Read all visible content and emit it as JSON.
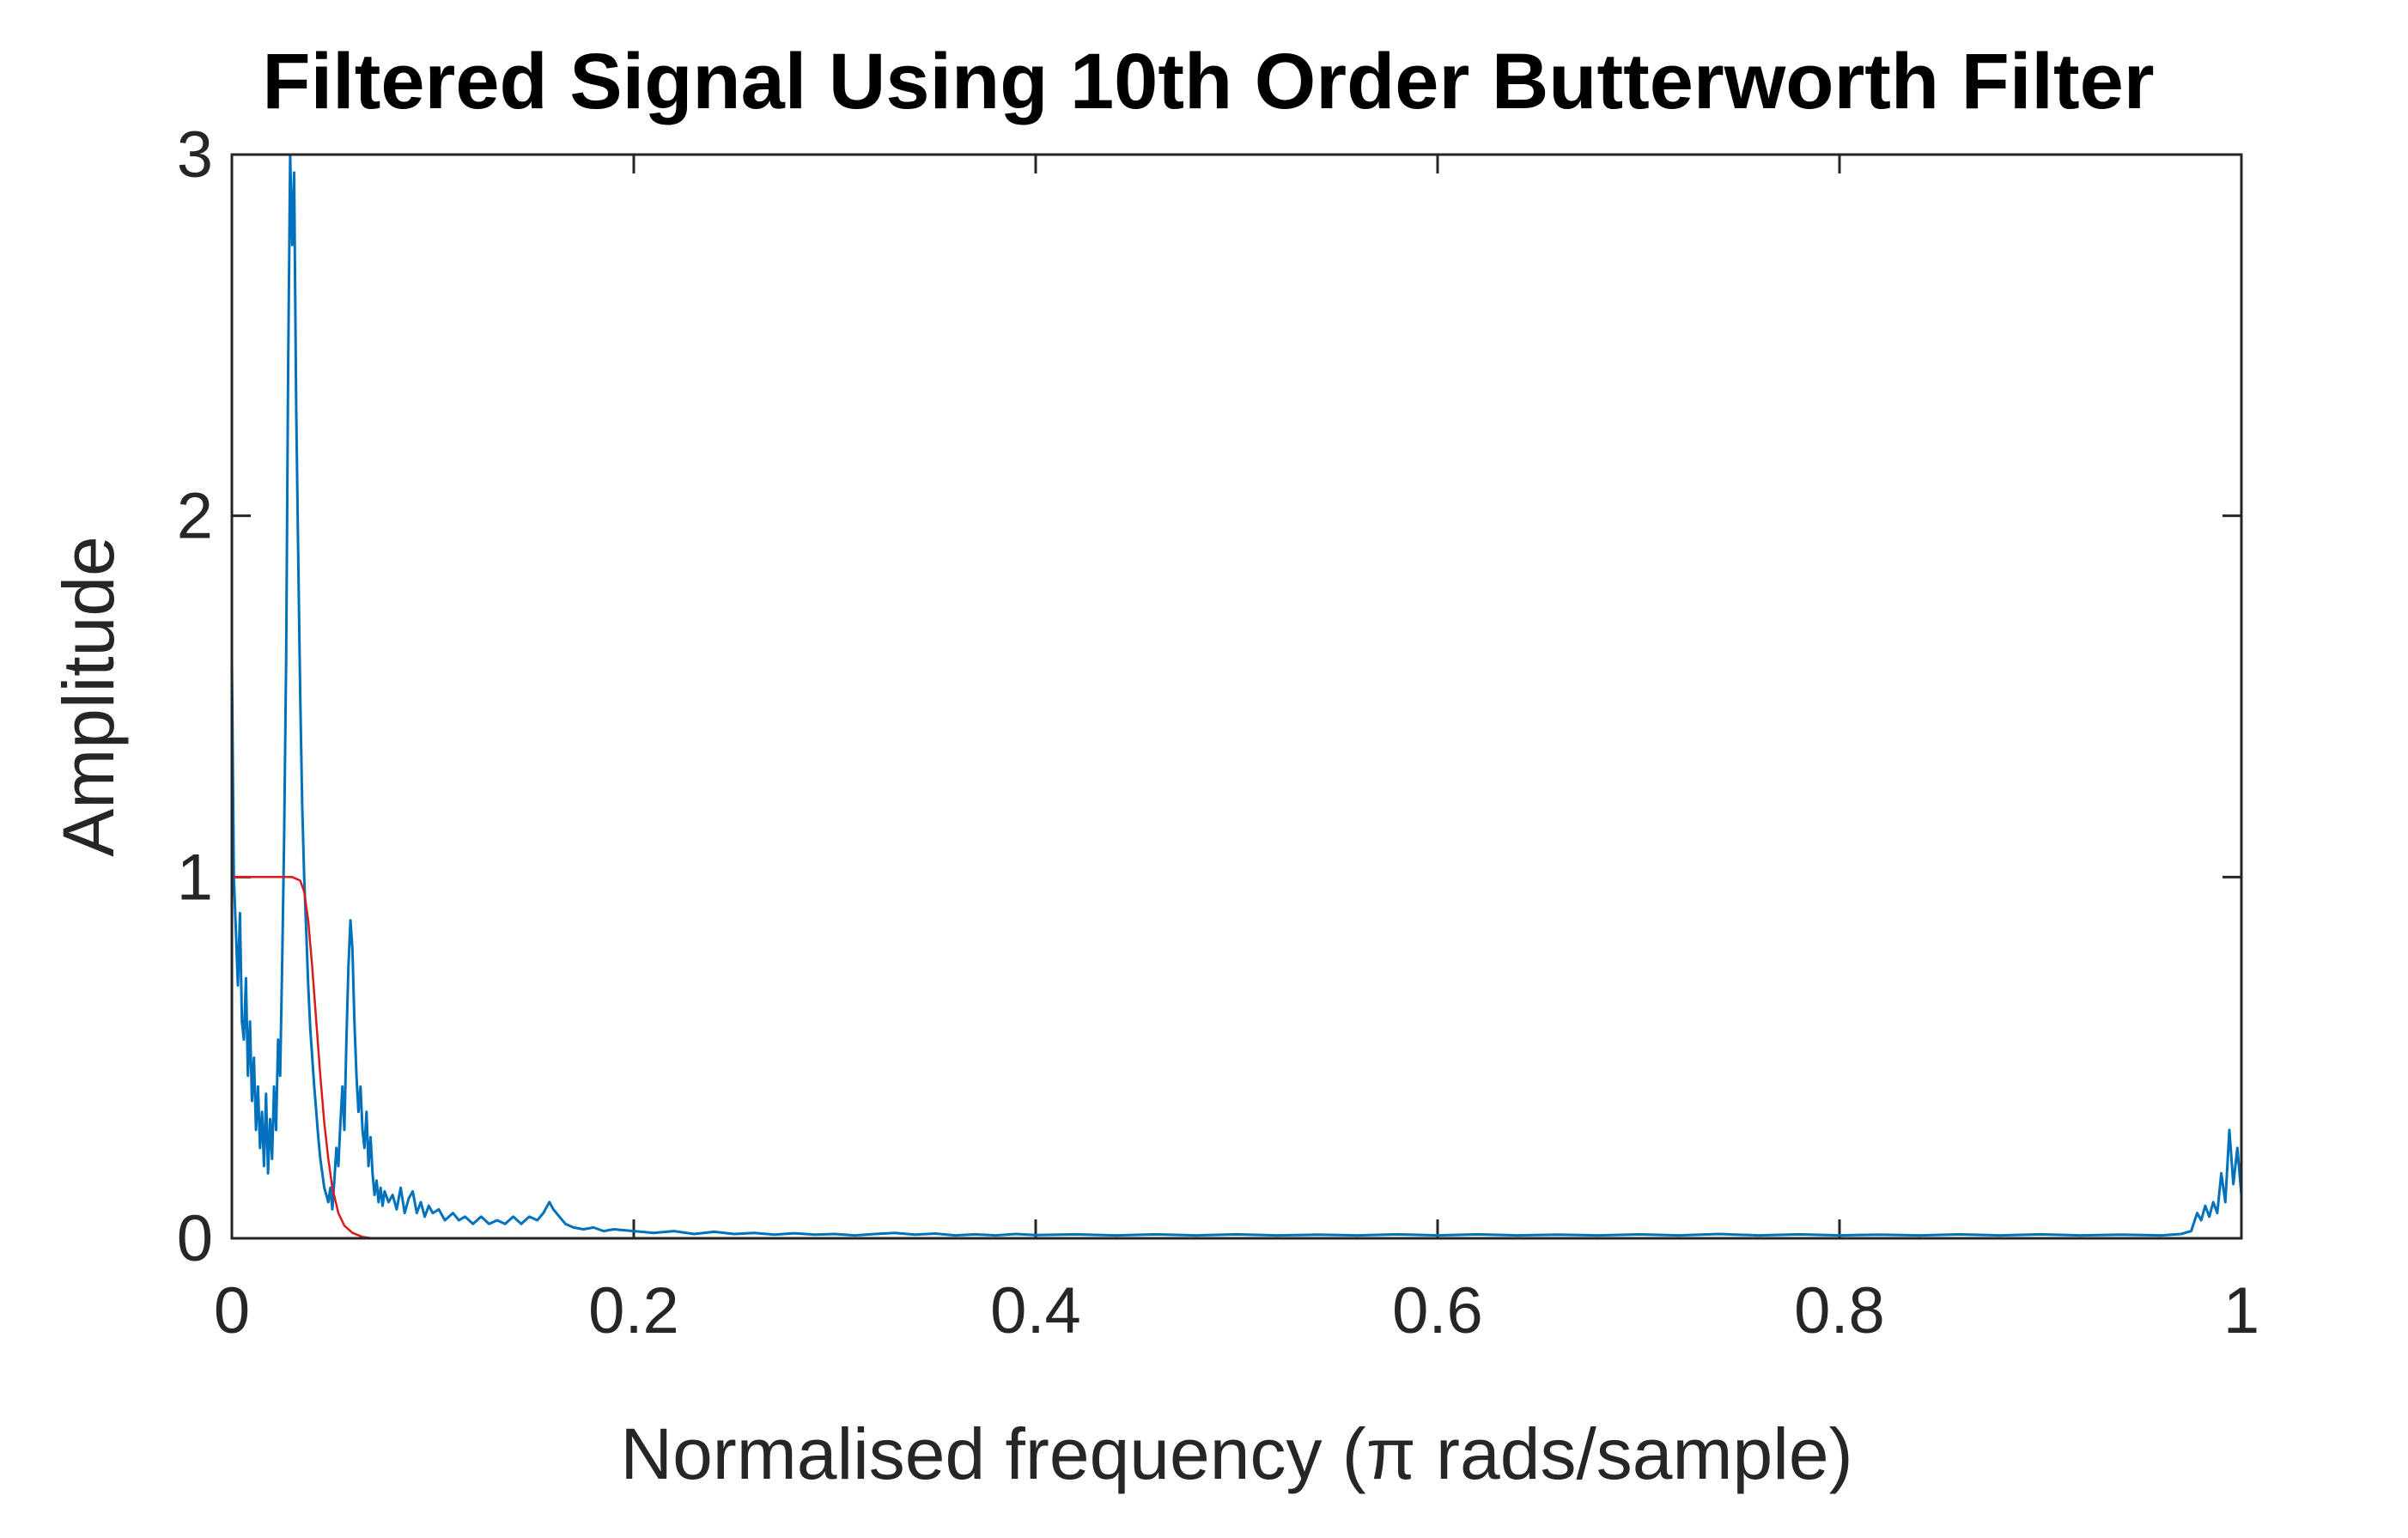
{
  "chart_data": {
    "type": "line",
    "title": "Filtered Signal Using 10th Order Butterworth Filter",
    "xlabel": "Normalised frequency (π rads/sample)",
    "ylabel": "Amplitude",
    "xlim": [
      0,
      1
    ],
    "ylim": [
      0,
      3
    ],
    "x_ticks": [
      0,
      0.2,
      0.4,
      0.6,
      0.8,
      1
    ],
    "x_tick_labels": [
      "0",
      "0.2",
      "0.4",
      "0.6",
      "0.8",
      "1"
    ],
    "y_ticks": [
      0,
      1,
      2,
      3
    ],
    "y_tick_labels": [
      "0",
      "1",
      "2",
      "3"
    ],
    "grid": false,
    "box": true,
    "series": [
      {
        "color": "#0072BD",
        "points": [
          [
            0,
            1.6
          ],
          [
            0.001,
            1.0
          ],
          [
            0.002,
            0.85
          ],
          [
            0.003,
            0.7
          ],
          [
            0.004,
            0.9
          ],
          [
            0.005,
            0.6
          ],
          [
            0.006,
            0.55
          ],
          [
            0.007,
            0.72
          ],
          [
            0.008,
            0.45
          ],
          [
            0.009,
            0.6
          ],
          [
            0.01,
            0.38
          ],
          [
            0.011,
            0.5
          ],
          [
            0.012,
            0.3
          ],
          [
            0.013,
            0.42
          ],
          [
            0.014,
            0.25
          ],
          [
            0.015,
            0.35
          ],
          [
            0.016,
            0.2
          ],
          [
            0.017,
            0.4
          ],
          [
            0.018,
            0.18
          ],
          [
            0.019,
            0.33
          ],
          [
            0.02,
            0.22
          ],
          [
            0.021,
            0.42
          ],
          [
            0.022,
            0.3
          ],
          [
            0.023,
            0.55
          ],
          [
            0.024,
            0.45
          ],
          [
            0.025,
            0.75
          ],
          [
            0.026,
            1.1
          ],
          [
            0.027,
            1.6
          ],
          [
            0.028,
            2.4
          ],
          [
            0.029,
            3.0
          ],
          [
            0.03,
            2.75
          ],
          [
            0.031,
            2.95
          ],
          [
            0.032,
            2.3
          ],
          [
            0.033,
            1.9
          ],
          [
            0.034,
            1.5
          ],
          [
            0.035,
            1.2
          ],
          [
            0.036,
            1.0
          ],
          [
            0.037,
            0.85
          ],
          [
            0.038,
            0.7
          ],
          [
            0.039,
            0.58
          ],
          [
            0.04,
            0.5
          ],
          [
            0.041,
            0.42
          ],
          [
            0.042,
            0.35
          ],
          [
            0.043,
            0.28
          ],
          [
            0.044,
            0.22
          ],
          [
            0.045,
            0.18
          ],
          [
            0.046,
            0.14
          ],
          [
            0.047,
            0.12
          ],
          [
            0.048,
            0.1
          ],
          [
            0.049,
            0.14
          ],
          [
            0.05,
            0.08
          ],
          [
            0.051,
            0.16
          ],
          [
            0.052,
            0.25
          ],
          [
            0.053,
            0.2
          ],
          [
            0.054,
            0.32
          ],
          [
            0.055,
            0.42
          ],
          [
            0.056,
            0.3
          ],
          [
            0.057,
            0.55
          ],
          [
            0.058,
            0.75
          ],
          [
            0.059,
            0.88
          ],
          [
            0.06,
            0.8
          ],
          [
            0.061,
            0.6
          ],
          [
            0.062,
            0.45
          ],
          [
            0.063,
            0.35
          ],
          [
            0.064,
            0.42
          ],
          [
            0.065,
            0.3
          ],
          [
            0.066,
            0.25
          ],
          [
            0.067,
            0.35
          ],
          [
            0.068,
            0.2
          ],
          [
            0.069,
            0.28
          ],
          [
            0.07,
            0.18
          ],
          [
            0.071,
            0.12
          ],
          [
            0.072,
            0.16
          ],
          [
            0.073,
            0.1
          ],
          [
            0.074,
            0.14
          ],
          [
            0.075,
            0.09
          ],
          [
            0.076,
            0.13
          ],
          [
            0.078,
            0.1
          ],
          [
            0.08,
            0.12
          ],
          [
            0.082,
            0.08
          ],
          [
            0.084,
            0.14
          ],
          [
            0.086,
            0.07
          ],
          [
            0.088,
            0.11
          ],
          [
            0.09,
            0.13
          ],
          [
            0.092,
            0.07
          ],
          [
            0.094,
            0.1
          ],
          [
            0.096,
            0.06
          ],
          [
            0.098,
            0.09
          ],
          [
            0.1,
            0.07
          ],
          [
            0.103,
            0.08
          ],
          [
            0.106,
            0.05
          ],
          [
            0.11,
            0.07
          ],
          [
            0.113,
            0.05
          ],
          [
            0.116,
            0.06
          ],
          [
            0.12,
            0.04
          ],
          [
            0.124,
            0.06
          ],
          [
            0.128,
            0.04
          ],
          [
            0.132,
            0.05
          ],
          [
            0.136,
            0.04
          ],
          [
            0.14,
            0.06
          ],
          [
            0.144,
            0.04
          ],
          [
            0.148,
            0.06
          ],
          [
            0.152,
            0.05
          ],
          [
            0.155,
            0.07
          ],
          [
            0.158,
            0.1
          ],
          [
            0.16,
            0.08
          ],
          [
            0.163,
            0.06
          ],
          [
            0.166,
            0.04
          ],
          [
            0.17,
            0.03
          ],
          [
            0.175,
            0.025
          ],
          [
            0.18,
            0.03
          ],
          [
            0.185,
            0.02
          ],
          [
            0.19,
            0.025
          ],
          [
            0.2,
            0.02
          ],
          [
            0.21,
            0.015
          ],
          [
            0.22,
            0.02
          ],
          [
            0.23,
            0.012
          ],
          [
            0.24,
            0.018
          ],
          [
            0.25,
            0.012
          ],
          [
            0.26,
            0.015
          ],
          [
            0.27,
            0.01
          ],
          [
            0.28,
            0.014
          ],
          [
            0.29,
            0.01
          ],
          [
            0.3,
            0.012
          ],
          [
            0.31,
            0.008
          ],
          [
            0.32,
            0.012
          ],
          [
            0.33,
            0.015
          ],
          [
            0.34,
            0.01
          ],
          [
            0.35,
            0.013
          ],
          [
            0.36,
            0.008
          ],
          [
            0.37,
            0.011
          ],
          [
            0.38,
            0.008
          ],
          [
            0.39,
            0.012
          ],
          [
            0.4,
            0.009
          ],
          [
            0.42,
            0.011
          ],
          [
            0.44,
            0.008
          ],
          [
            0.46,
            0.011
          ],
          [
            0.48,
            0.008
          ],
          [
            0.5,
            0.011
          ],
          [
            0.52,
            0.008
          ],
          [
            0.54,
            0.01
          ],
          [
            0.56,
            0.008
          ],
          [
            0.58,
            0.011
          ],
          [
            0.6,
            0.008
          ],
          [
            0.62,
            0.011
          ],
          [
            0.64,
            0.008
          ],
          [
            0.66,
            0.01
          ],
          [
            0.68,
            0.008
          ],
          [
            0.7,
            0.011
          ],
          [
            0.72,
            0.008
          ],
          [
            0.74,
            0.012
          ],
          [
            0.76,
            0.008
          ],
          [
            0.78,
            0.011
          ],
          [
            0.8,
            0.008
          ],
          [
            0.82,
            0.01
          ],
          [
            0.84,
            0.008
          ],
          [
            0.86,
            0.011
          ],
          [
            0.88,
            0.008
          ],
          [
            0.9,
            0.011
          ],
          [
            0.92,
            0.008
          ],
          [
            0.94,
            0.01
          ],
          [
            0.96,
            0.008
          ],
          [
            0.97,
            0.012
          ],
          [
            0.975,
            0.02
          ],
          [
            0.978,
            0.07
          ],
          [
            0.98,
            0.05
          ],
          [
            0.982,
            0.09
          ],
          [
            0.984,
            0.06
          ],
          [
            0.986,
            0.1
          ],
          [
            0.988,
            0.07
          ],
          [
            0.99,
            0.18
          ],
          [
            0.992,
            0.1
          ],
          [
            0.994,
            0.3
          ],
          [
            0.996,
            0.15
          ],
          [
            0.998,
            0.25
          ],
          [
            1.0,
            0.12
          ]
        ]
      },
      {
        "color": "#D81B1B",
        "points": [
          [
            0,
            1.0
          ],
          [
            0.01,
            1.0
          ],
          [
            0.02,
            1.0
          ],
          [
            0.03,
            1.0
          ],
          [
            0.034,
            0.99
          ],
          [
            0.036,
            0.96
          ],
          [
            0.038,
            0.88
          ],
          [
            0.04,
            0.75
          ],
          [
            0.042,
            0.6
          ],
          [
            0.044,
            0.45
          ],
          [
            0.046,
            0.32
          ],
          [
            0.048,
            0.22
          ],
          [
            0.05,
            0.14
          ],
          [
            0.053,
            0.07
          ],
          [
            0.056,
            0.035
          ],
          [
            0.06,
            0.015
          ],
          [
            0.065,
            0.004
          ],
          [
            0.07,
            0.0
          ],
          [
            0.1,
            0.0
          ],
          [
            0.5,
            0.0
          ],
          [
            1.0,
            0.0
          ]
        ]
      }
    ]
  }
}
